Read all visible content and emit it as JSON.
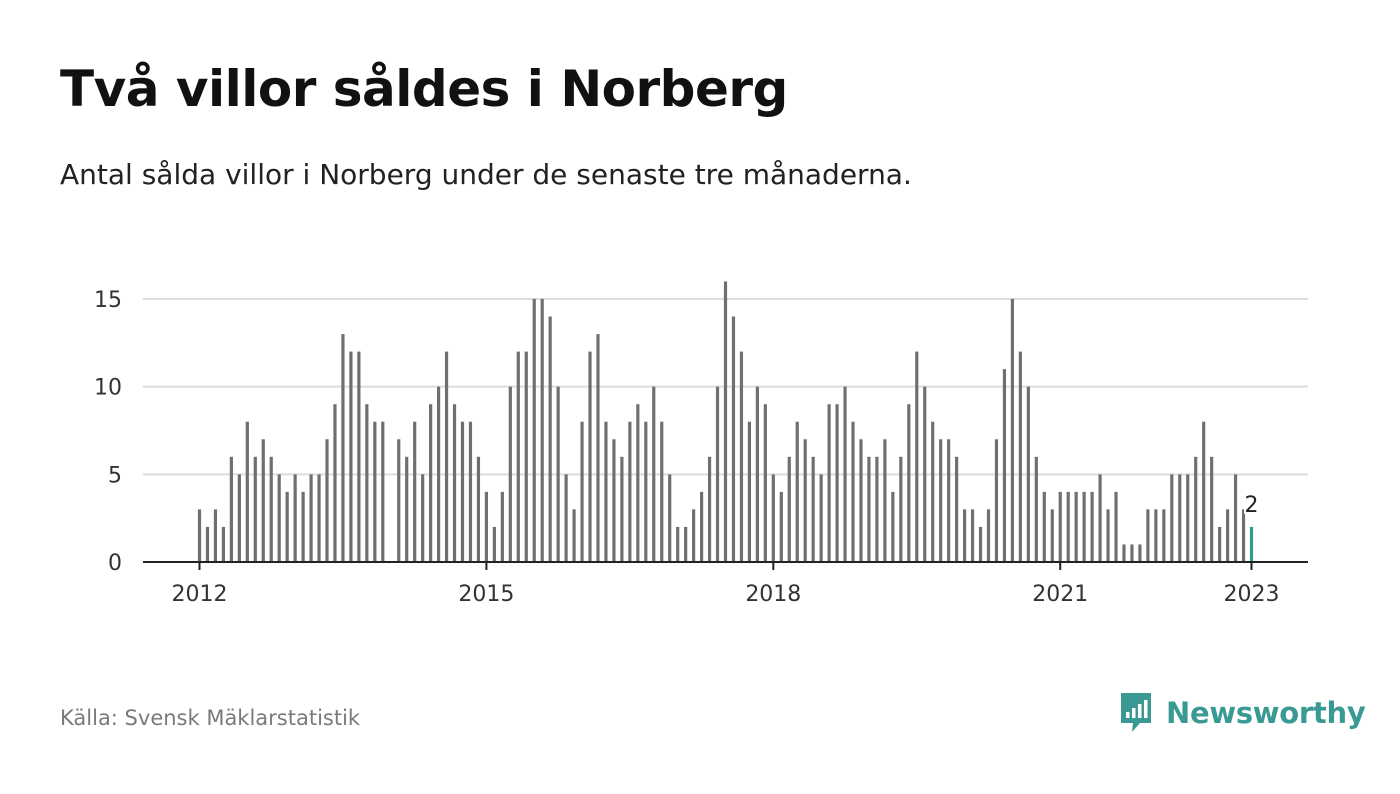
{
  "title": "Två villor såldes i Norberg",
  "subtitle": "Antal sålda villor i Norberg under de senaste tre månaderna.",
  "source": "Källa: Svensk Mäklarstatistik",
  "brand": {
    "name": "Newsworthy",
    "icon": "newsworthy-logo-icon",
    "color": "#3a9a93"
  },
  "chart_data": {
    "type": "bar",
    "y_ticks": [
      0,
      5,
      10,
      15
    ],
    "x_ticks": [
      {
        "label": "2012",
        "index": 0
      },
      {
        "label": "2015",
        "index": 36
      },
      {
        "label": "2018",
        "index": 72
      },
      {
        "label": "2021",
        "index": 108
      },
      {
        "label": "2023",
        "index": 132
      }
    ],
    "ylim": [
      0,
      16
    ],
    "grid": true,
    "bar_color": "#6f6f73",
    "highlight_color": "#2a9d8f",
    "highlight_index": 132,
    "highlight_label": "2",
    "period": {
      "start": "2012-01",
      "end": "2023-01",
      "frequency": "monthly"
    },
    "values": [
      3,
      2,
      3,
      2,
      6,
      5,
      8,
      6,
      7,
      6,
      5,
      4,
      5,
      4,
      5,
      5,
      7,
      9,
      13,
      12,
      12,
      9,
      8,
      8,
      0,
      7,
      6,
      8,
      5,
      9,
      10,
      12,
      9,
      8,
      8,
      6,
      4,
      2,
      4,
      10,
      12,
      12,
      15,
      15,
      14,
      10,
      5,
      3,
      8,
      12,
      13,
      8,
      7,
      6,
      8,
      9,
      8,
      10,
      8,
      5,
      2,
      2,
      3,
      4,
      6,
      10,
      16,
      14,
      12,
      8,
      10,
      9,
      5,
      4,
      6,
      8,
      7,
      6,
      5,
      9,
      9,
      10,
      8,
      7,
      6,
      6,
      7,
      4,
      6,
      9,
      12,
      10,
      8,
      7,
      7,
      6,
      3,
      3,
      2,
      3,
      7,
      11,
      15,
      12,
      10,
      6,
      4,
      3,
      4,
      4,
      4,
      4,
      4,
      5,
      3,
      4,
      1,
      1,
      1,
      3,
      3,
      3,
      5,
      5,
      5,
      6,
      8,
      6,
      2,
      3,
      5,
      3,
      2
    ]
  }
}
